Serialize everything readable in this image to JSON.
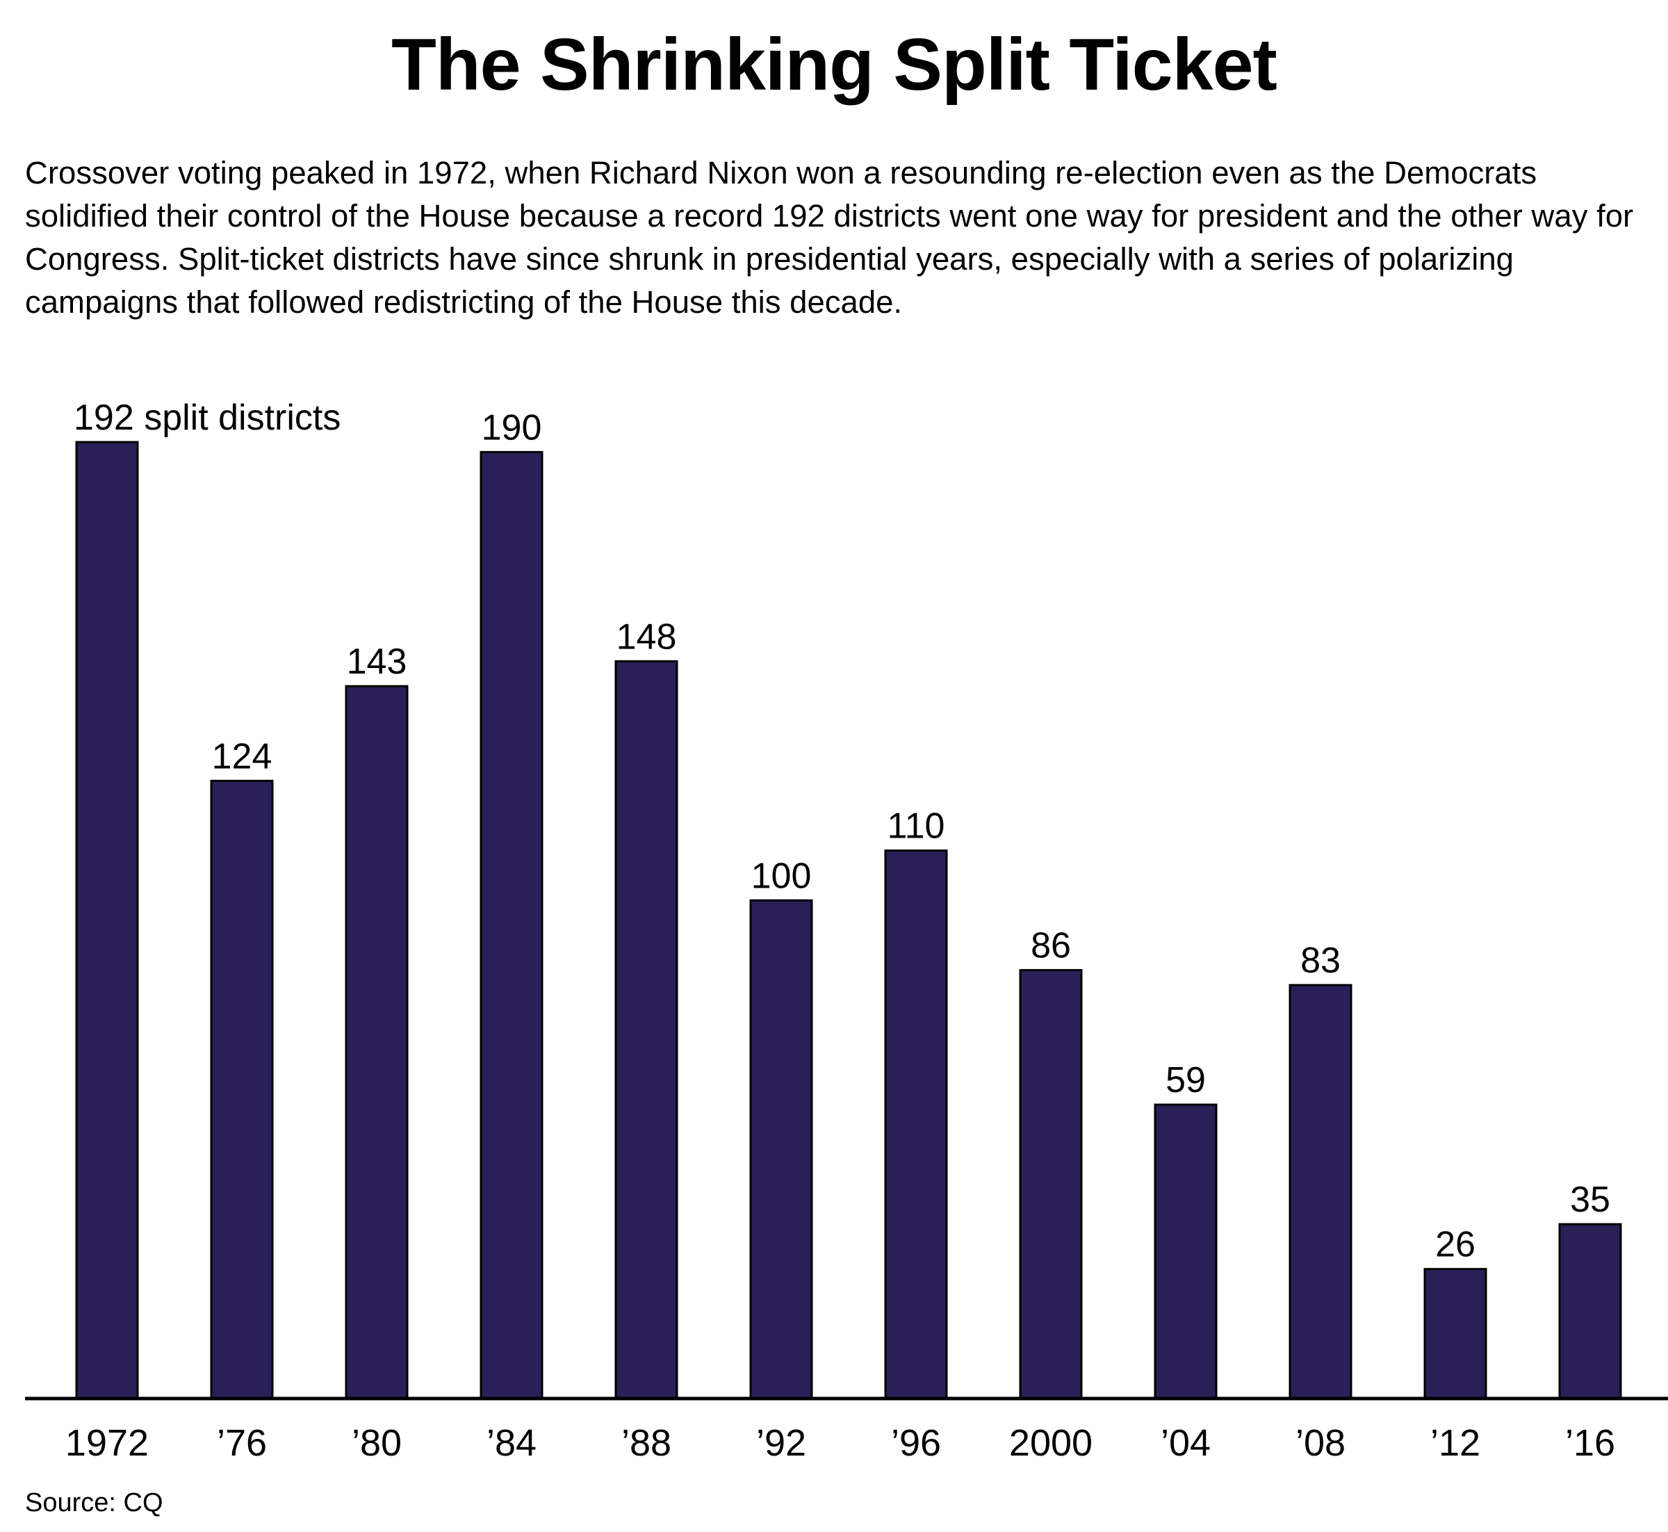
{
  "title": "The Shrinking Split Ticket",
  "subtitle": "Crossover voting peaked in 1972, when Richard Nixon won a resounding re-election even as the Democrats solidified their control of the House because a record 192 districts went one way for president and the other way for Congress. Split-ticket districts have since shrunk in presidential years, especially with a series of polarizing campaigns that followed redistricting of the House this decade.",
  "source": "Source: CQ",
  "colors": {
    "bar": "#2a2057",
    "bar_stroke": "#000000",
    "axis": "#000000"
  },
  "chart_data": {
    "type": "bar",
    "title": "The Shrinking Split Ticket",
    "xlabel": "",
    "ylabel": "",
    "categories": [
      "1972",
      "’76",
      "’80",
      "’84",
      "’88",
      "’92",
      "’96",
      "2000",
      "’04",
      "’08",
      "’12",
      "’16"
    ],
    "values": [
      192,
      124,
      143,
      190,
      148,
      100,
      110,
      86,
      59,
      83,
      26,
      35
    ],
    "data_labels": [
      "192 split districts",
      "124",
      "143",
      "190",
      "148",
      "100",
      "110",
      "86",
      "59",
      "83",
      "26",
      "35"
    ],
    "ylim": [
      0,
      192
    ],
    "grid": false,
    "legend": "none"
  }
}
